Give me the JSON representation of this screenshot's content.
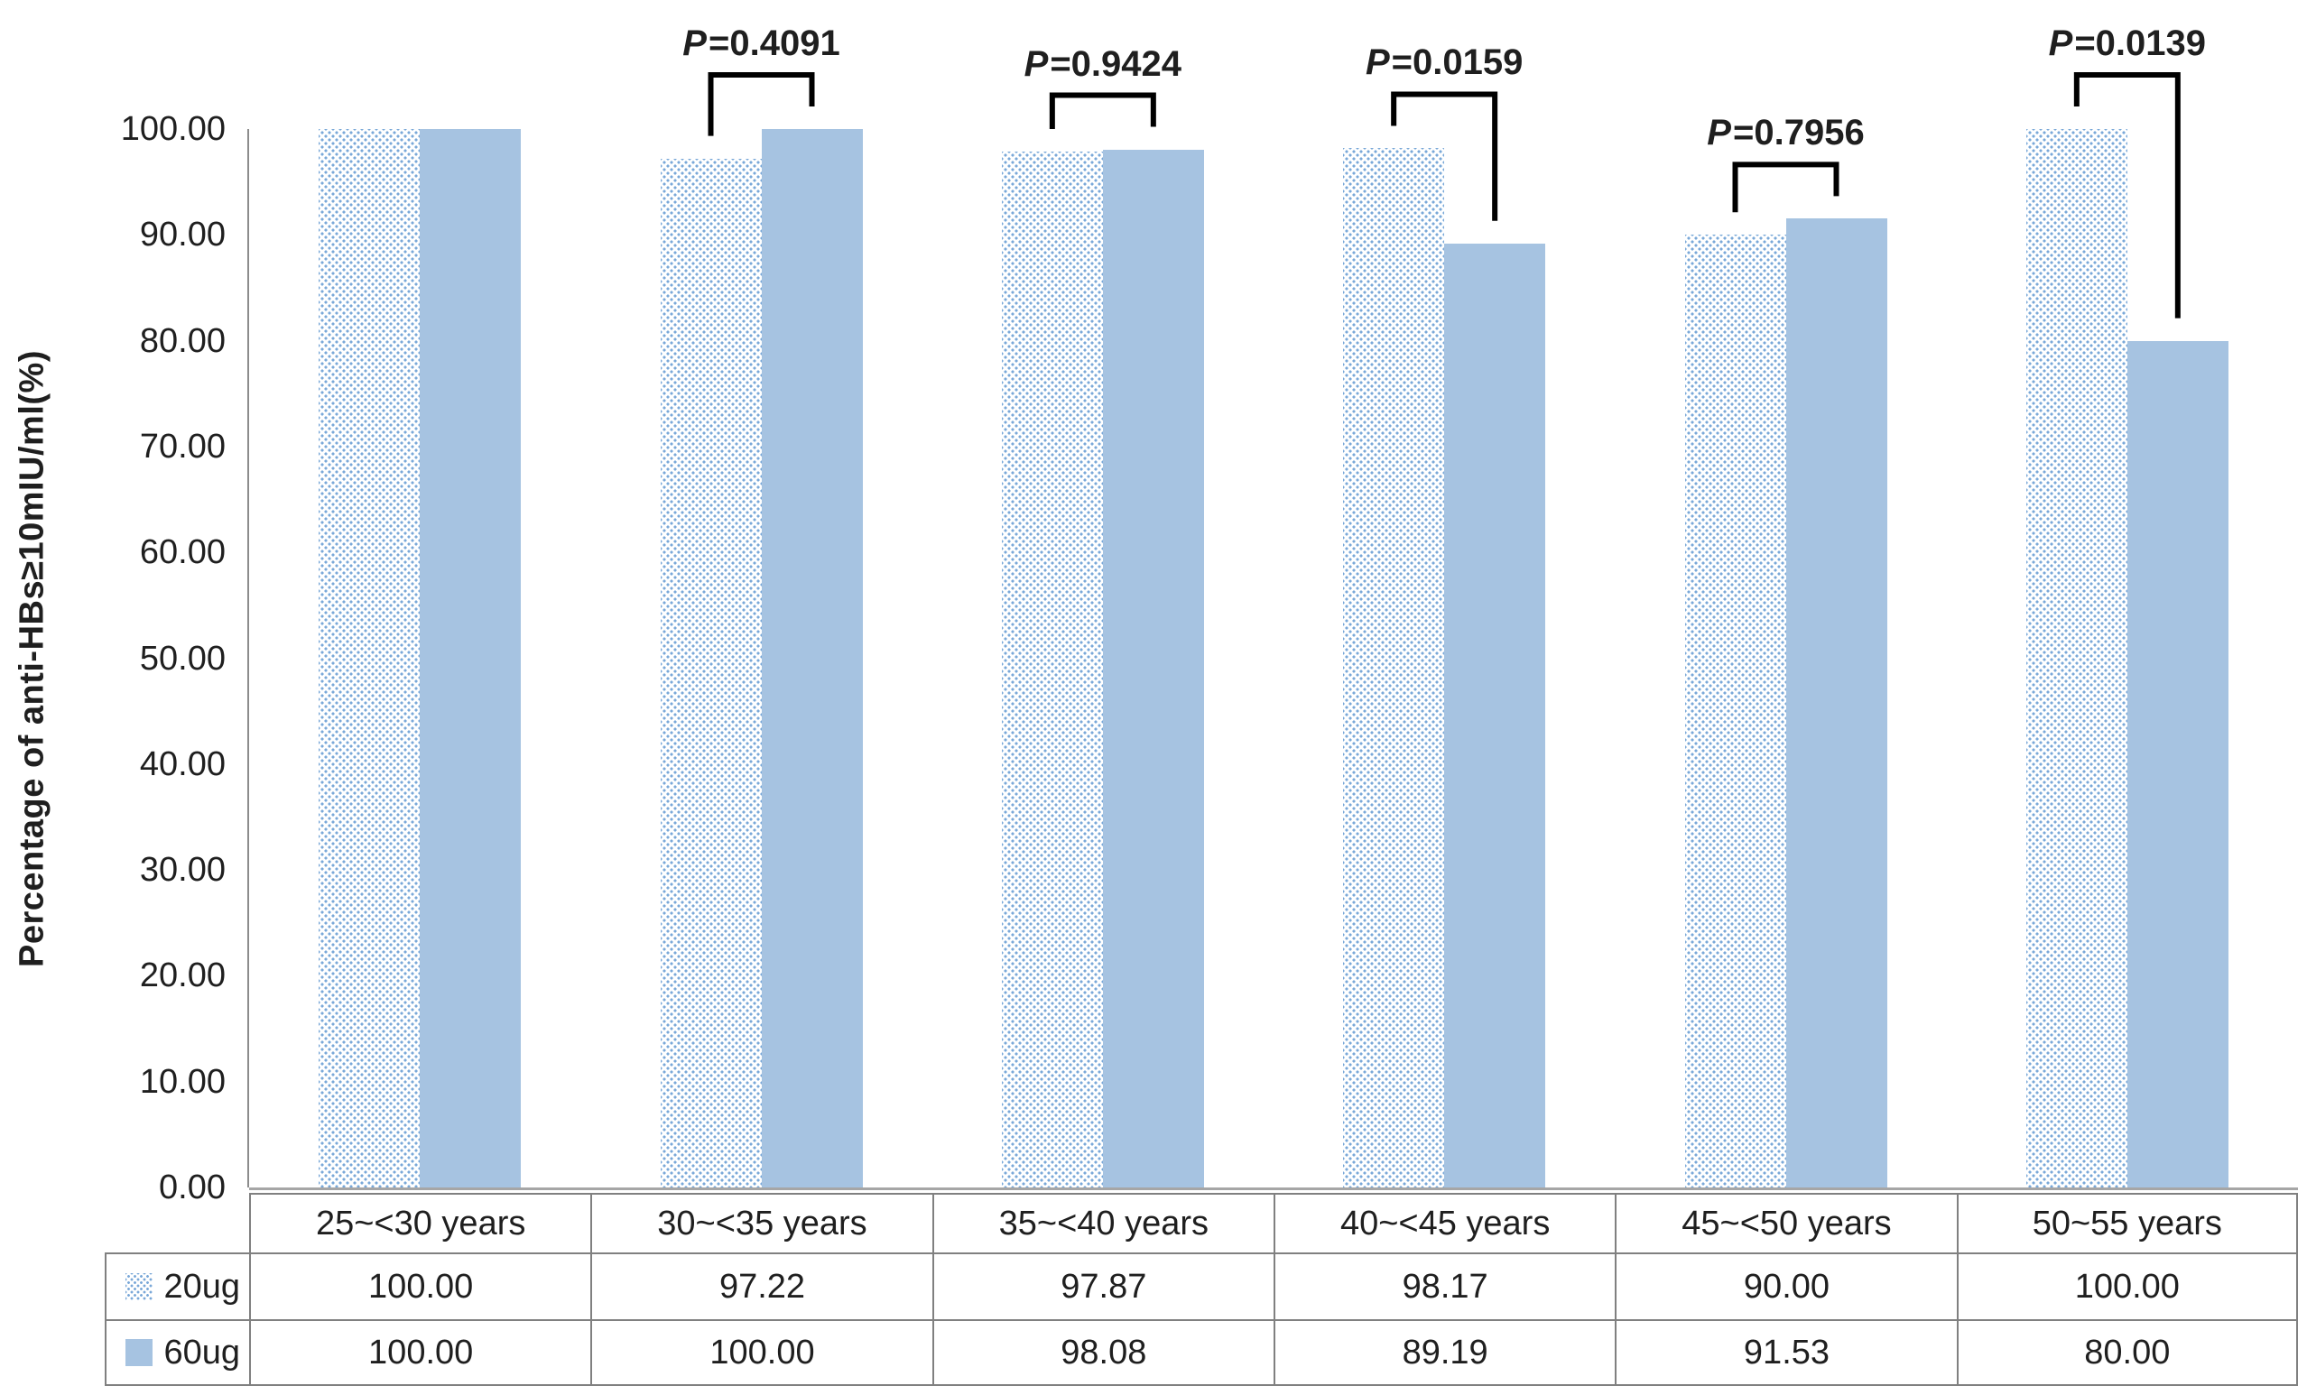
{
  "chart_data": {
    "type": "bar",
    "title": "",
    "xlabel": "",
    "ylabel": "Percentage of anti-HBs≥10mIU/ml(%)",
    "ylim": [
      0,
      100
    ],
    "ytick_values": [
      100,
      90,
      80,
      70,
      60,
      50,
      40,
      30,
      20,
      10,
      0
    ],
    "ytick_labels": [
      "100.00",
      "90.00",
      "80.00",
      "70.00",
      "60.00",
      "50.00",
      "40.00",
      "30.00",
      "20.00",
      "10.00",
      "0.00"
    ],
    "grid": false,
    "legend_position": "table-left",
    "categories": [
      "25~<30 years",
      "30~<35 years",
      "35~<40 years",
      "40~<45 years",
      "45~<50 years",
      "50~55 years"
    ],
    "series": [
      {
        "name": "20ug",
        "pattern": "dotted",
        "values": [
          100.0,
          97.22,
          97.87,
          98.17,
          90.0,
          100.0
        ]
      },
      {
        "name": "60ug",
        "pattern": "solid",
        "values": [
          100.0,
          100.0,
          98.08,
          89.19,
          91.53,
          80.0
        ]
      }
    ],
    "annotations": [
      {
        "category_index": 1,
        "prefix": "P",
        "text": "=0.4091"
      },
      {
        "category_index": 2,
        "prefix": "P",
        "text": "=0.9424"
      },
      {
        "category_index": 3,
        "prefix": "P",
        "text": "=0.0159"
      },
      {
        "category_index": 4,
        "prefix": "P",
        "text": "=0.7956"
      },
      {
        "category_index": 5,
        "prefix": "P",
        "text": "=0.0139"
      }
    ],
    "colors": {
      "solid_fill": "#a6c3e1",
      "dot_color": "#7aa8d8",
      "axis_line": "#8c8c8c",
      "table_border": "#808080",
      "bracket": "#000000",
      "text": "#1f1f1f"
    }
  },
  "table": {
    "row_headers": [
      "20ug",
      "60ug"
    ],
    "columns": [
      "25~<30 years",
      "30~<35 years",
      "35~<40 years",
      "40~<45 years",
      "45~<50 years",
      "50~55 years"
    ],
    "rows": [
      [
        "100.00",
        "97.22",
        "97.87",
        "98.17",
        "90.00",
        "100.00"
      ],
      [
        "100.00",
        "100.00",
        "98.08",
        "89.19",
        "91.53",
        "80.00"
      ]
    ]
  }
}
